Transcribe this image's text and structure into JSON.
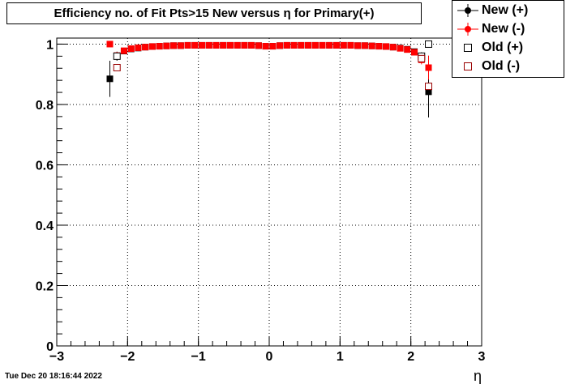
{
  "title": "Efficiency no. of Fit Pts>15 New versus  η for Primary(+)",
  "timestamp": "Tue Dec 20 18:16:44 2022",
  "legend": [
    {
      "name": "New (+)",
      "color": "#000000",
      "marker": "filled-circle"
    },
    {
      "name": "New (-)",
      "color": "#ff0000",
      "marker": "filled-circle"
    },
    {
      "name": "Old (+)",
      "color": "#000000",
      "marker": "open-square"
    },
    {
      "name": "Old (-)",
      "color": "#990000",
      "marker": "open-square"
    }
  ],
  "chart_data": {
    "type": "scatter",
    "xlabel": "η",
    "ylabel": "",
    "xlim": [
      -3,
      3
    ],
    "ylim": [
      0,
      1.02
    ],
    "x_ticks": [
      "−3",
      "−2",
      "−1",
      "0",
      "1",
      "2",
      "3"
    ],
    "y_ticks": [
      "0",
      "0.2",
      "0.4",
      "0.6",
      "0.8",
      "1"
    ],
    "grid": true,
    "legend_position": "top-right",
    "series": [
      {
        "name": "New (+)",
        "color": "#000000",
        "x": [
          -2.25,
          -2.15,
          -2.05,
          -1.95,
          -1.85,
          -1.75,
          -1.65,
          -1.55,
          -1.45,
          -1.35,
          -1.25,
          -1.15,
          -1.05,
          -0.95,
          -0.85,
          -0.75,
          -0.65,
          -0.55,
          -0.45,
          -0.35,
          -0.25,
          -0.15,
          -0.05,
          0.05,
          0.15,
          0.25,
          0.35,
          0.45,
          0.55,
          0.65,
          0.75,
          0.85,
          0.95,
          1.05,
          1.15,
          1.25,
          1.35,
          1.45,
          1.55,
          1.65,
          1.75,
          1.85,
          1.95,
          2.05,
          2.15,
          2.25
        ],
        "y": [
          0.885,
          0.96,
          0.977,
          0.984,
          0.987,
          0.99,
          0.992,
          0.993,
          0.994,
          0.995,
          0.995,
          0.996,
          0.996,
          0.996,
          0.996,
          0.996,
          0.996,
          0.996,
          0.996,
          0.996,
          0.996,
          0.995,
          0.993,
          0.993,
          0.995,
          0.996,
          0.996,
          0.996,
          0.996,
          0.996,
          0.996,
          0.996,
          0.996,
          0.996,
          0.996,
          0.995,
          0.995,
          0.994,
          0.993,
          0.992,
          0.99,
          0.987,
          0.983,
          0.975,
          0.958,
          0.842
        ],
        "err": [
          0.06,
          0.015,
          0.006,
          0.004,
          0.003,
          0.002,
          0.002,
          0.002,
          0.001,
          0.001,
          0.001,
          0.001,
          0.001,
          0.001,
          0.001,
          0.001,
          0.001,
          0.001,
          0.001,
          0.001,
          0.001,
          0.001,
          0.001,
          0.001,
          0.001,
          0.001,
          0.001,
          0.001,
          0.001,
          0.001,
          0.001,
          0.001,
          0.001,
          0.001,
          0.001,
          0.001,
          0.001,
          0.001,
          0.002,
          0.002,
          0.002,
          0.003,
          0.004,
          0.006,
          0.015,
          0.085
        ]
      },
      {
        "name": "New (-)",
        "color": "#ff0000",
        "x": [
          -2.25,
          -2.15,
          -2.05,
          -1.95,
          -1.85,
          -1.75,
          -1.65,
          -1.55,
          -1.45,
          -1.35,
          -1.25,
          -1.15,
          -1.05,
          -0.95,
          -0.85,
          -0.75,
          -0.65,
          -0.55,
          -0.45,
          -0.35,
          -0.25,
          -0.15,
          -0.05,
          0.05,
          0.15,
          0.25,
          0.35,
          0.45,
          0.55,
          0.65,
          0.75,
          0.85,
          0.95,
          1.05,
          1.15,
          1.25,
          1.35,
          1.45,
          1.55,
          1.65,
          1.75,
          1.85,
          1.95,
          2.05,
          2.15,
          2.25
        ],
        "y": [
          1.0,
          0.962,
          0.978,
          0.985,
          0.988,
          0.99,
          0.992,
          0.993,
          0.994,
          0.995,
          0.995,
          0.996,
          0.996,
          0.996,
          0.996,
          0.996,
          0.996,
          0.996,
          0.996,
          0.996,
          0.996,
          0.995,
          0.993,
          0.993,
          0.995,
          0.996,
          0.996,
          0.996,
          0.996,
          0.996,
          0.996,
          0.996,
          0.996,
          0.996,
          0.996,
          0.995,
          0.995,
          0.994,
          0.993,
          0.992,
          0.99,
          0.986,
          0.982,
          0.973,
          0.948,
          0.922
        ],
        "err": [
          0.0,
          0.012,
          0.005,
          0.003,
          0.002,
          0.002,
          0.002,
          0.001,
          0.001,
          0.001,
          0.001,
          0.001,
          0.001,
          0.001,
          0.001,
          0.001,
          0.001,
          0.001,
          0.001,
          0.001,
          0.001,
          0.001,
          0.001,
          0.001,
          0.001,
          0.001,
          0.001,
          0.001,
          0.001,
          0.001,
          0.001,
          0.001,
          0.001,
          0.001,
          0.001,
          0.001,
          0.001,
          0.001,
          0.001,
          0.002,
          0.002,
          0.002,
          0.003,
          0.005,
          0.015,
          0.04
        ]
      },
      {
        "name": "Old (+)",
        "color": "#000000",
        "x": [
          -2.15,
          2.15,
          2.25
        ],
        "y": [
          0.96,
          0.96,
          1.0
        ]
      },
      {
        "name": "Old (-)",
        "color": "#990000",
        "x": [
          -2.15,
          2.15,
          2.25
        ],
        "y": [
          0.922,
          0.952,
          0.86
        ]
      }
    ]
  }
}
